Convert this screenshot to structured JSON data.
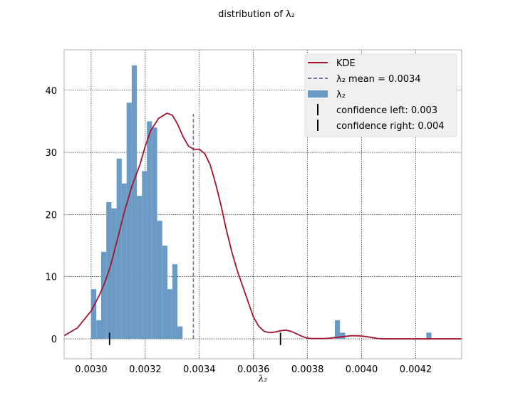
{
  "chart_data": {
    "type": "bar",
    "title": "distribution of λ₂",
    "xlabel": "λ₂",
    "ylabel": "",
    "xlim": [
      0.0029,
      0.00437
    ],
    "ylim": [
      -3.2,
      46.5
    ],
    "x_ticks": [
      0.003,
      0.0032,
      0.0034,
      0.0036,
      0.0038,
      0.004,
      0.0042
    ],
    "x_tick_labels": [
      "0.0030",
      "0.0032",
      "0.0034",
      "0.0036",
      "0.0038",
      "0.0040",
      "0.0042"
    ],
    "y_ticks": [
      0,
      10,
      20,
      30,
      40
    ],
    "y_tick_labels": [
      "0",
      "10",
      "20",
      "30",
      "40"
    ],
    "grid": true,
    "legend_position": "top-right",
    "histogram": {
      "name": "λ₂",
      "color": "#6b9bc5",
      "bin_width": 1.88e-05,
      "bin_left_edges": [
        0.003,
        0.0030188,
        0.0030376,
        0.0030564,
        0.0030752,
        0.003094,
        0.0031128,
        0.0031316,
        0.0031504,
        0.0031692,
        0.003188,
        0.0032068,
        0.0032256,
        0.0032444,
        0.0032632,
        0.003282,
        0.0033008,
        0.0033196,
        0.0033384,
        0.0033572,
        0.003376,
        0.0033948,
        0.0034136,
        0.0034324,
        0.0034512,
        0.00347,
        0.0034888,
        0.0035076,
        0.0035264,
        0.0035452,
        0.003564,
        0.0035828,
        0.0036016,
        0.0036204,
        0.0036392,
        0.003658,
        0.0036768,
        0.0036956,
        0.0037144,
        0.0037332,
        0.003752
      ],
      "counts": [
        8,
        3,
        14,
        22,
        21,
        29,
        25,
        38,
        44,
        23,
        27,
        35,
        34,
        19,
        15,
        8,
        12,
        2,
        0,
        0,
        0,
        0,
        0,
        0,
        0,
        0,
        0,
        0,
        0,
        0,
        0,
        0,
        0,
        0,
        0,
        0,
        0,
        0,
        0,
        0,
        0
      ]
    },
    "bars": [
      {
        "x0": 0.003,
        "x1": 0.003019,
        "count": 8
      },
      {
        "x0": 0.003019,
        "x1": 0.003037,
        "count": 3
      },
      {
        "x0": 0.003037,
        "x1": 0.003056,
        "count": 14
      },
      {
        "x0": 0.003056,
        "x1": 0.003075,
        "count": 22
      },
      {
        "x0": 0.003075,
        "x1": 0.003094,
        "count": 21
      },
      {
        "x0": 0.003094,
        "x1": 0.003113,
        "count": 29
      },
      {
        "x0": 0.003113,
        "x1": 0.003131,
        "count": 25
      },
      {
        "x0": 0.003131,
        "x1": 0.00315,
        "count": 38
      },
      {
        "x0": 0.00315,
        "x1": 0.003169,
        "count": 44
      },
      {
        "x0": 0.003169,
        "x1": 0.003188,
        "count": 23
      },
      {
        "x0": 0.003188,
        "x1": 0.003206,
        "count": 27
      },
      {
        "x0": 0.003206,
        "x1": 0.003225,
        "count": 35
      },
      {
        "x0": 0.003225,
        "x1": 0.003244,
        "count": 34
      },
      {
        "x0": 0.003244,
        "x1": 0.003263,
        "count": 19
      },
      {
        "x0": 0.003263,
        "x1": 0.003282,
        "count": 15
      },
      {
        "x0": 0.003282,
        "x1": 0.0033,
        "count": 8
      },
      {
        "x0": 0.0033,
        "x1": 0.003319,
        "count": 12
      },
      {
        "x0": 0.003319,
        "x1": 0.003338,
        "count": 2
      },
      {
        "x0": 0.003901,
        "x1": 0.00392,
        "count": 3
      },
      {
        "x0": 0.00392,
        "x1": 0.003939,
        "count": 1
      },
      {
        "x0": 0.004239,
        "x1": 0.004258,
        "count": 1
      }
    ],
    "kde": {
      "name": "KDE",
      "color": "#a2142f",
      "x": [
        0.0029,
        0.00295,
        0.003,
        0.00303,
        0.00305,
        0.00307,
        0.0031,
        0.00312,
        0.00315,
        0.00318,
        0.0032,
        0.00322,
        0.00325,
        0.00328,
        0.0033,
        0.00332,
        0.00334,
        0.00336,
        0.00338,
        0.0034,
        0.00342,
        0.00344,
        0.00346,
        0.00348,
        0.0035,
        0.00352,
        0.00354,
        0.00356,
        0.00358,
        0.0036,
        0.00362,
        0.00364,
        0.00366,
        0.00368,
        0.0037,
        0.00372,
        0.00374,
        0.00376,
        0.00378,
        0.0038,
        0.00382,
        0.00384,
        0.00386,
        0.00388,
        0.0039,
        0.00392,
        0.00394,
        0.00396,
        0.00398,
        0.004,
        0.00402,
        0.00404,
        0.00406,
        0.00408,
        0.0041,
        0.00412,
        0.00414,
        0.00416,
        0.00418,
        0.0042,
        0.00422,
        0.00424,
        0.00426,
        0.00428,
        0.0043,
        0.00432,
        0.00434,
        0.00437
      ],
      "y": [
        0.5,
        1.8,
        4.5,
        7.0,
        9.0,
        11.5,
        16.5,
        20.0,
        24.5,
        28.0,
        31.0,
        33.5,
        35.5,
        36.3,
        36.0,
        34.5,
        32.5,
        31.0,
        30.5,
        30.5,
        29.8,
        28.0,
        25.0,
        21.5,
        17.5,
        14.0,
        11.0,
        8.5,
        6.0,
        3.5,
        2.0,
        1.2,
        1.0,
        1.1,
        1.3,
        1.4,
        1.2,
        0.8,
        0.4,
        0.1,
        0.05,
        0.05,
        0.05,
        0.1,
        0.2,
        0.3,
        0.4,
        0.5,
        0.5,
        0.45,
        0.35,
        0.2,
        0.05,
        0.0,
        0.0,
        0.0,
        0.0,
        0.0,
        0.0,
        0.0,
        0.0,
        0.0,
        0.0,
        0.0,
        0.0,
        0.0,
        0.0,
        0.0
      ]
    },
    "mean_line": {
      "name": "λ₂ mean = 0.0034",
      "value": 0.003378,
      "color": "#7b6aa8"
    },
    "confidence_markers": [
      {
        "name": "confidence left: 0.003",
        "value": 0.003068,
        "color": "#000000"
      },
      {
        "name": "confidence right: 0.004",
        "value": 0.0037,
        "color": "#000000"
      }
    ]
  },
  "legend": {
    "items": [
      {
        "label": "KDE",
        "kind": "line",
        "color": "#a2142f"
      },
      {
        "label": "λ₂ mean = 0.0034",
        "kind": "dashed",
        "color": "#7b6aa8"
      },
      {
        "label": "λ₂",
        "kind": "patch",
        "color": "#6b9bc5"
      },
      {
        "label": "confidence left: 0.003",
        "kind": "vline",
        "color": "#000000"
      },
      {
        "label": "confidence right: 0.004",
        "kind": "vline",
        "color": "#000000"
      }
    ]
  }
}
